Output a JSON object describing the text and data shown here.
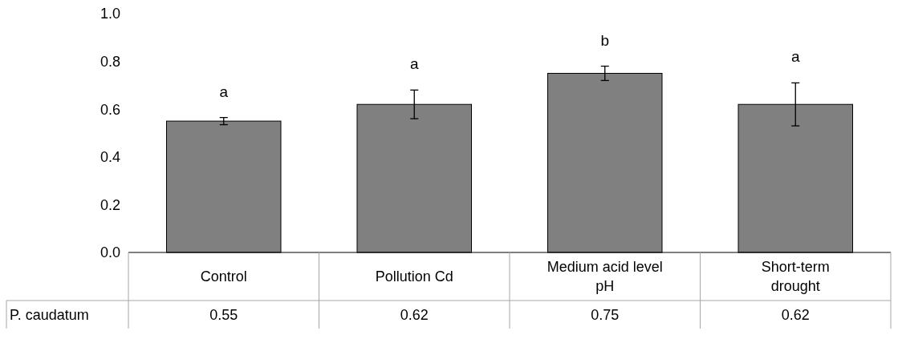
{
  "chart_data": {
    "type": "bar",
    "categories": [
      "Control",
      "Pollution Cd",
      "Medium acid level pH",
      "Short-term drought"
    ],
    "series": [
      {
        "name": "P. caudatum",
        "color": "#808080",
        "values": [
          0.55,
          0.62,
          0.75,
          0.62
        ],
        "errors": [
          0.015,
          0.06,
          0.03,
          0.09
        ]
      }
    ],
    "ylim": [
      0,
      1
    ],
    "yticks": [
      {
        "value": 0,
        "label": "0.0"
      },
      {
        "value": 0.2,
        "label": "0.2"
      },
      {
        "value": 0.4,
        "label": "0.4"
      },
      {
        "value": 0.6,
        "label": "0.6"
      },
      {
        "value": 0.8,
        "label": "0.8"
      },
      {
        "value": 1,
        "label": "1.0"
      }
    ],
    "annotations": [
      "a",
      "a",
      "b",
      "a"
    ],
    "data_labels": true,
    "grid": false
  }
}
